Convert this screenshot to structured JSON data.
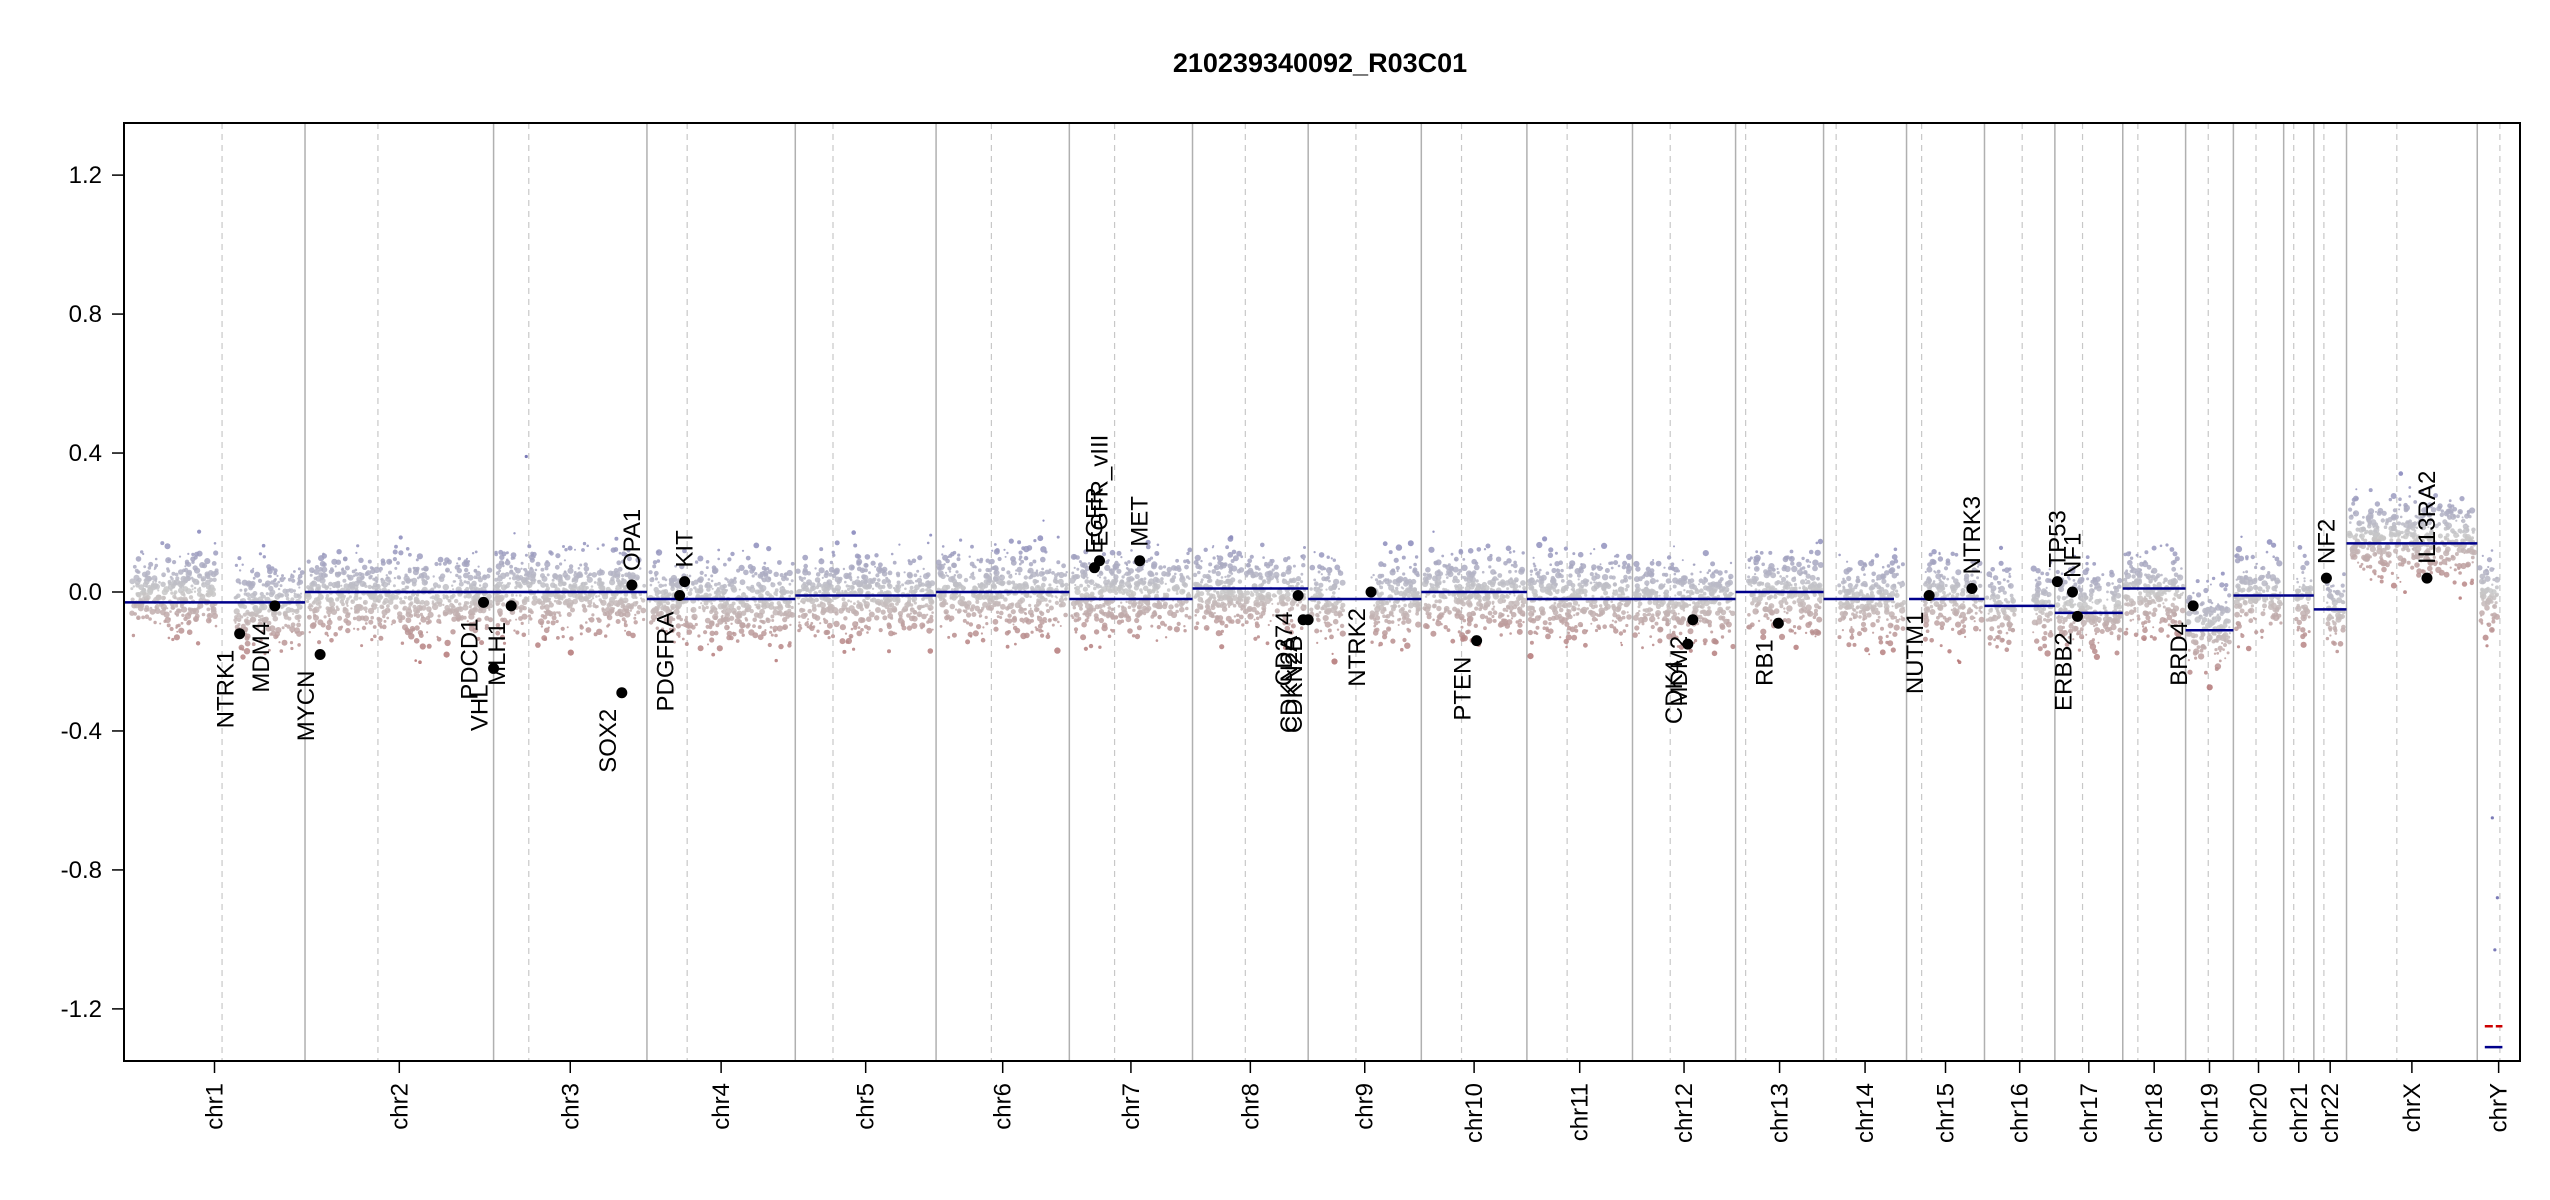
{
  "chart_data": {
    "type": "scatter",
    "title": "210239340092_R03C01",
    "xlabel": "",
    "ylabel": "",
    "ylim": [
      -1.35,
      1.35
    ],
    "yticks": [
      -1.2,
      -0.8,
      -0.4,
      0.0,
      0.4,
      0.8,
      1.2
    ],
    "grid": false,
    "legend": "none",
    "colors": {
      "gain": "#7b7bb8",
      "loss": "#b06a6a",
      "neutral": "#c8c8c8",
      "segment": "#00008b",
      "y_segment_red": "#cc0000",
      "gene_point": "#000000",
      "boundary": "#b0b0b0",
      "centromere": "#c8c8c8"
    },
    "chromosomes": [
      {
        "name": "chr1",
        "start": 0.0,
        "end": 7.2,
        "cent": 3.9
      },
      {
        "name": "chr2",
        "start": 7.2,
        "end": 14.7,
        "cent": 10.1
      },
      {
        "name": "chr3",
        "start": 14.7,
        "end": 20.8,
        "cent": 16.1
      },
      {
        "name": "chr4",
        "start": 20.8,
        "end": 26.7,
        "cent": 22.4
      },
      {
        "name": "chr5",
        "start": 26.7,
        "end": 32.3,
        "cent": 28.2
      },
      {
        "name": "chr6",
        "start": 32.3,
        "end": 37.6,
        "cent": 34.5
      },
      {
        "name": "chr7",
        "start": 37.6,
        "end": 42.5,
        "cent": 39.4
      },
      {
        "name": "chr8",
        "start": 42.5,
        "end": 47.1,
        "cent": 44.6
      },
      {
        "name": "chr9",
        "start": 47.1,
        "end": 51.6,
        "cent": 49.0
      },
      {
        "name": "chr10",
        "start": 51.6,
        "end": 55.8,
        "cent": 53.2
      },
      {
        "name": "chr11",
        "start": 55.8,
        "end": 60.0,
        "cent": 57.4
      },
      {
        "name": "chr12",
        "start": 60.0,
        "end": 64.1,
        "cent": 61.5
      },
      {
        "name": "chr13",
        "start": 64.1,
        "end": 67.6,
        "cent": 64.5
      },
      {
        "name": "chr14",
        "start": 67.6,
        "end": 70.9,
        "cent": 68.1
      },
      {
        "name": "chr15",
        "start": 70.9,
        "end": 74.0,
        "cent": 71.5
      },
      {
        "name": "chr16",
        "start": 74.0,
        "end": 76.8,
        "cent": 75.5
      },
      {
        "name": "chr17",
        "start": 76.8,
        "end": 79.5,
        "cent": 77.9
      },
      {
        "name": "chr18",
        "start": 79.5,
        "end": 82.0,
        "cent": 80.1
      },
      {
        "name": "chr19",
        "start": 82.0,
        "end": 83.9,
        "cent": 82.9
      },
      {
        "name": "chr20",
        "start": 83.9,
        "end": 85.9,
        "cent": 84.8
      },
      {
        "name": "chr21",
        "start": 85.9,
        "end": 87.1,
        "cent": 86.3
      },
      {
        "name": "chr22",
        "start": 87.1,
        "end": 88.4,
        "cent": 87.5
      },
      {
        "name": "chrX",
        "start": 88.4,
        "end": 93.6,
        "cent": 90.4
      },
      {
        "name": "chrY",
        "start": 93.6,
        "end": 95.3,
        "cent": 94.5
      }
    ],
    "density": [
      {
        "chr": "chr1",
        "from": 0.3,
        "to": 3.7,
        "center": 0.0
      },
      {
        "chr": "chr1",
        "from": 4.4,
        "to": 7.1,
        "center": -0.04
      },
      {
        "chr": "chr2",
        "from": 7.3,
        "to": 14.6,
        "center": -0.01
      },
      {
        "chr": "chr3",
        "from": 14.8,
        "to": 20.7,
        "center": 0.0
      },
      {
        "chr": "chr4",
        "from": 20.9,
        "to": 26.6,
        "center": -0.02
      },
      {
        "chr": "chr5",
        "from": 26.8,
        "to": 32.2,
        "center": -0.01
      },
      {
        "chr": "chr6",
        "from": 32.4,
        "to": 37.5,
        "center": 0.0
      },
      {
        "chr": "chr7",
        "from": 37.7,
        "to": 42.4,
        "center": 0.0
      },
      {
        "chr": "chr8",
        "from": 42.6,
        "to": 47.0,
        "center": 0.0
      },
      {
        "chr": "chr9",
        "from": 47.2,
        "to": 48.5,
        "center": -0.02
      },
      {
        "chr": "chr9",
        "from": 49.6,
        "to": 51.5,
        "center": -0.02
      },
      {
        "chr": "chr10",
        "from": 51.7,
        "to": 55.7,
        "center": 0.0
      },
      {
        "chr": "chr11",
        "from": 55.9,
        "to": 59.9,
        "center": -0.01
      },
      {
        "chr": "chr12",
        "from": 60.1,
        "to": 64.0,
        "center": -0.02
      },
      {
        "chr": "chr13",
        "from": 64.6,
        "to": 67.5,
        "center": 0.0
      },
      {
        "chr": "chr14",
        "from": 68.2,
        "to": 70.8,
        "center": -0.02
      },
      {
        "chr": "chr15",
        "from": 71.6,
        "to": 73.9,
        "center": -0.01
      },
      {
        "chr": "chr16",
        "from": 74.1,
        "to": 75.2,
        "center": -0.04
      },
      {
        "chr": "chr16",
        "from": 75.9,
        "to": 76.7,
        "center": -0.04
      },
      {
        "chr": "chr17",
        "from": 76.9,
        "to": 79.4,
        "center": -0.04
      },
      {
        "chr": "chr18",
        "from": 79.6,
        "to": 81.9,
        "center": 0.0
      },
      {
        "chr": "chr19",
        "from": 82.1,
        "to": 83.8,
        "center": -0.1
      },
      {
        "chr": "chr20",
        "from": 84.0,
        "to": 85.8,
        "center": -0.01
      },
      {
        "chr": "chr21",
        "from": 86.4,
        "to": 87.0,
        "center": -0.01
      },
      {
        "chr": "chr22",
        "from": 87.6,
        "to": 88.3,
        "center": -0.05
      },
      {
        "chr": "chrX",
        "from": 88.5,
        "to": 93.5,
        "center": 0.16
      },
      {
        "chr": "chrY",
        "from": 93.7,
        "to": 94.4,
        "center": 0.0
      }
    ],
    "segments": [
      {
        "x0": 0.0,
        "x1": 7.2,
        "y": -0.03
      },
      {
        "x0": 7.2,
        "x1": 20.8,
        "y": 0.0
      },
      {
        "x0": 20.8,
        "x1": 26.7,
        "y": -0.02
      },
      {
        "x0": 26.7,
        "x1": 32.3,
        "y": -0.01
      },
      {
        "x0": 32.3,
        "x1": 37.6,
        "y": 0.0
      },
      {
        "x0": 37.6,
        "x1": 42.5,
        "y": -0.02
      },
      {
        "x0": 42.5,
        "x1": 47.1,
        "y": 0.01
      },
      {
        "x0": 47.1,
        "x1": 51.6,
        "y": -0.02
      },
      {
        "x0": 51.6,
        "x1": 55.8,
        "y": 0.0
      },
      {
        "x0": 55.8,
        "x1": 60.0,
        "y": -0.02
      },
      {
        "x0": 60.0,
        "x1": 64.1,
        "y": -0.02
      },
      {
        "x0": 64.1,
        "x1": 67.6,
        "y": 0.0
      },
      {
        "x0": 67.6,
        "x1": 70.4,
        "y": -0.02
      },
      {
        "x0": 71.0,
        "x1": 74.0,
        "y": -0.02
      },
      {
        "x0": 74.0,
        "x1": 76.8,
        "y": -0.04
      },
      {
        "x0": 76.8,
        "x1": 79.5,
        "y": -0.06
      },
      {
        "x0": 79.5,
        "x1": 82.0,
        "y": 0.01
      },
      {
        "x0": 82.0,
        "x1": 83.9,
        "y": -0.11
      },
      {
        "x0": 83.9,
        "x1": 85.9,
        "y": -0.01
      },
      {
        "x0": 85.9,
        "x1": 87.1,
        "y": -0.01
      },
      {
        "x0": 87.1,
        "x1": 88.4,
        "y": -0.05
      },
      {
        "x0": 88.4,
        "x1": 93.6,
        "y": 0.14
      }
    ],
    "y_segments": [
      {
        "x0": 93.9,
        "x1": 94.6,
        "y": -1.25,
        "color": "red"
      },
      {
        "x0": 93.9,
        "x1": 94.6,
        "y": -1.31,
        "color": "blue"
      }
    ],
    "outliers": [
      {
        "x": 16.0,
        "y": 0.39
      },
      {
        "x": 94.3,
        "y": -1.03
      },
      {
        "x": 94.4,
        "y": -0.88
      },
      {
        "x": 94.2,
        "y": -0.65
      }
    ],
    "genes": [
      {
        "name": "NTRK1",
        "x": 4.6,
        "y": -0.12,
        "side": "below"
      },
      {
        "name": "MDM4",
        "x": 6.0,
        "y": -0.04,
        "side": "below"
      },
      {
        "name": "MYCN",
        "x": 7.8,
        "y": -0.18,
        "side": "below"
      },
      {
        "name": "VHL",
        "x": 14.7,
        "y": -0.22,
        "side": "below"
      },
      {
        "name": "PDCD1",
        "x": 14.3,
        "y": -0.03,
        "side": "below"
      },
      {
        "name": "MLH1",
        "x": 15.4,
        "y": -0.04,
        "side": "below"
      },
      {
        "name": "SOX2",
        "x": 19.8,
        "y": -0.29,
        "side": "below"
      },
      {
        "name": "OPA1",
        "x": 20.2,
        "y": 0.02,
        "side": "above"
      },
      {
        "name": "PDGFRA",
        "x": 22.1,
        "y": -0.01,
        "side": "below"
      },
      {
        "name": "KIT",
        "x": 22.3,
        "y": 0.03,
        "side": "above"
      },
      {
        "name": "EGFR",
        "x": 38.6,
        "y": 0.07,
        "side": "above"
      },
      {
        "name": "EGFR_vIII",
        "x": 38.8,
        "y": 0.09,
        "side": "above"
      },
      {
        "name": "MET",
        "x": 40.4,
        "y": 0.09,
        "side": "above"
      },
      {
        "name": "CD274",
        "x": 46.7,
        "y": -0.01,
        "side": "below"
      },
      {
        "name": "CDKN2A",
        "x": 46.9,
        "y": -0.08,
        "side": "below"
      },
      {
        "name": "CDKN2B",
        "x": 47.1,
        "y": -0.08,
        "side": "below"
      },
      {
        "name": "NTRK2",
        "x": 49.6,
        "y": 0.0,
        "side": "below"
      },
      {
        "name": "PTEN",
        "x": 53.8,
        "y": -0.14,
        "side": "below"
      },
      {
        "name": "CDK4",
        "x": 62.2,
        "y": -0.15,
        "side": "below"
      },
      {
        "name": "MDM2",
        "x": 62.4,
        "y": -0.08,
        "side": "below"
      },
      {
        "name": "RB1",
        "x": 65.8,
        "y": -0.09,
        "side": "below"
      },
      {
        "name": "NUTM1",
        "x": 71.8,
        "y": -0.01,
        "side": "below"
      },
      {
        "name": "NTRK3",
        "x": 73.5,
        "y": 0.01,
        "side": "above"
      },
      {
        "name": "TP53",
        "x": 76.9,
        "y": 0.03,
        "side": "above"
      },
      {
        "name": "NF1",
        "x": 77.5,
        "y": 0.0,
        "side": "above"
      },
      {
        "name": "ERBB2",
        "x": 77.7,
        "y": -0.07,
        "side": "below"
      },
      {
        "name": "BRD4",
        "x": 82.3,
        "y": -0.04,
        "side": "below"
      },
      {
        "name": "NF2",
        "x": 87.6,
        "y": 0.04,
        "side": "above"
      },
      {
        "name": "IL13RA2",
        "x": 91.6,
        "y": 0.04,
        "side": "above"
      }
    ]
  }
}
